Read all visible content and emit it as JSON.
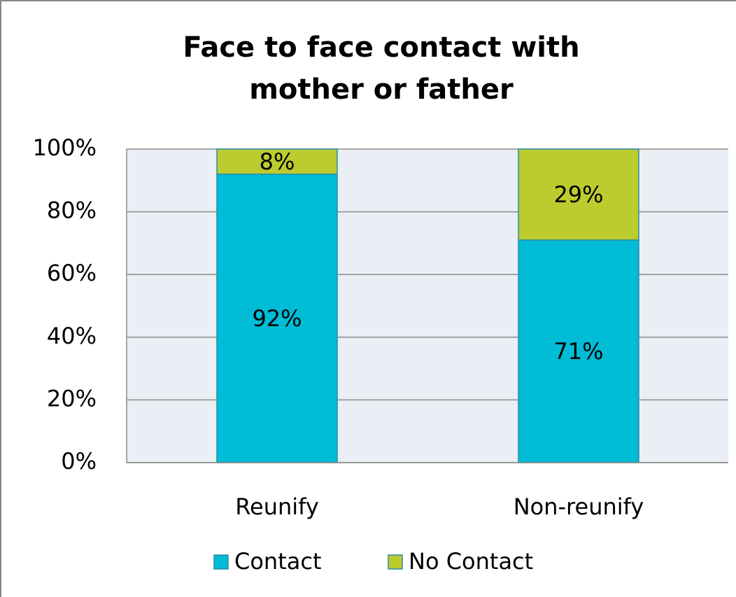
{
  "chart_data": {
    "type": "stacked-bar",
    "title": "Face to face contact with mother or father",
    "categories": [
      "Reunify",
      "Non-reunify"
    ],
    "series": [
      {
        "name": "Contact",
        "color": "#00bcd6",
        "values": [
          92,
          71
        ],
        "value_labels": [
          "92%",
          "71%"
        ]
      },
      {
        "name": "No Contact",
        "color": "#bccb2e",
        "values": [
          8,
          29
        ],
        "value_labels": [
          "8%",
          "29%"
        ]
      }
    ],
    "ylim": [
      0,
      100
    ],
    "yticks": [
      {
        "value": 0,
        "label": "0%"
      },
      {
        "value": 20,
        "label": "20%"
      },
      {
        "value": 40,
        "label": "40%"
      },
      {
        "value": 60,
        "label": "60%"
      },
      {
        "value": 80,
        "label": "80%"
      },
      {
        "value": 100,
        "label": "100%"
      }
    ],
    "grid": true,
    "legend": "bottom"
  }
}
